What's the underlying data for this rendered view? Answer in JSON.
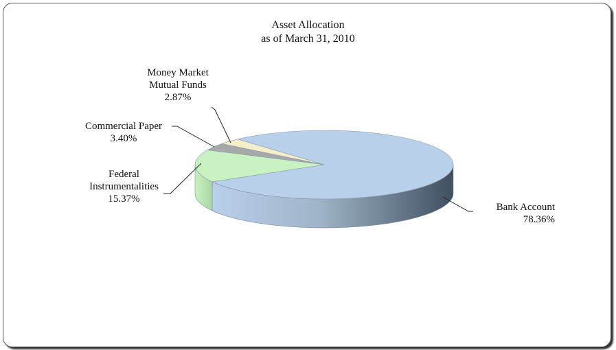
{
  "chart_data": {
    "type": "pie3d",
    "title": "Asset Allocation",
    "subtitle": "as of  March 31, 2010",
    "categories": [
      "Bank Account",
      "Federal Instrumentalities",
      "Commercial Paper",
      "Money Market Mutual Funds"
    ],
    "values": [
      78.36,
      15.37,
      3.4,
      2.87
    ],
    "value_labels": [
      "78.36%",
      "15.37%",
      "3.40%",
      "2.87%"
    ],
    "colors": [
      "#b9d0ea",
      "#c8f2c2",
      "#a8a8a8",
      "#f3efc9"
    ]
  }
}
